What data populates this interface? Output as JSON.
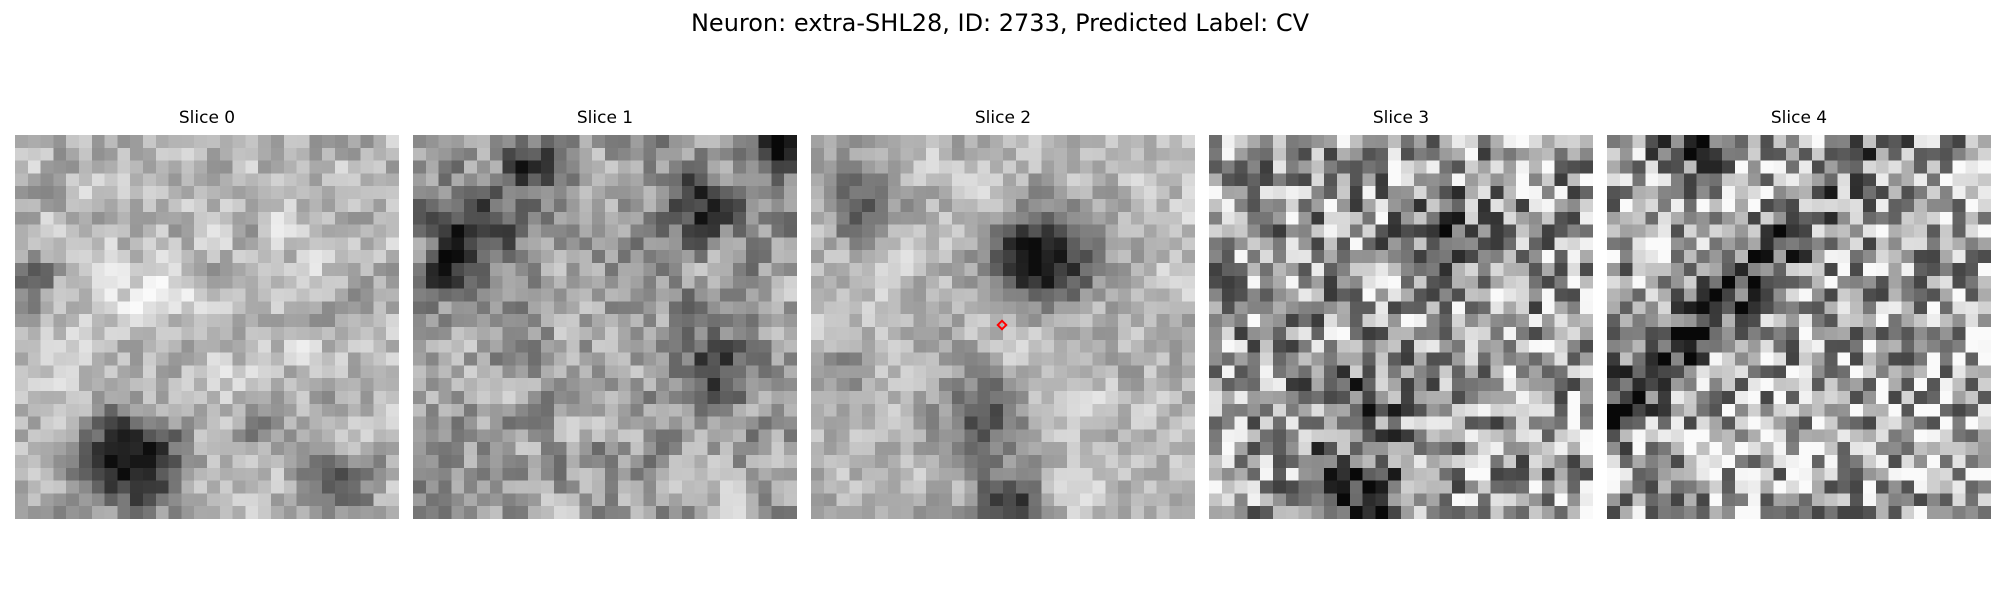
{
  "figure": {
    "title": "Neuron: extra-SHL28, ID: 2733, Predicted Label: CV"
  },
  "panels": [
    {
      "title": "Slice 0"
    },
    {
      "title": "Slice 1"
    },
    {
      "title": "Slice 2",
      "marker_color": "#ff0000"
    },
    {
      "title": "Slice 3"
    },
    {
      "title": "Slice 4"
    }
  ],
  "colormap": "gray"
}
